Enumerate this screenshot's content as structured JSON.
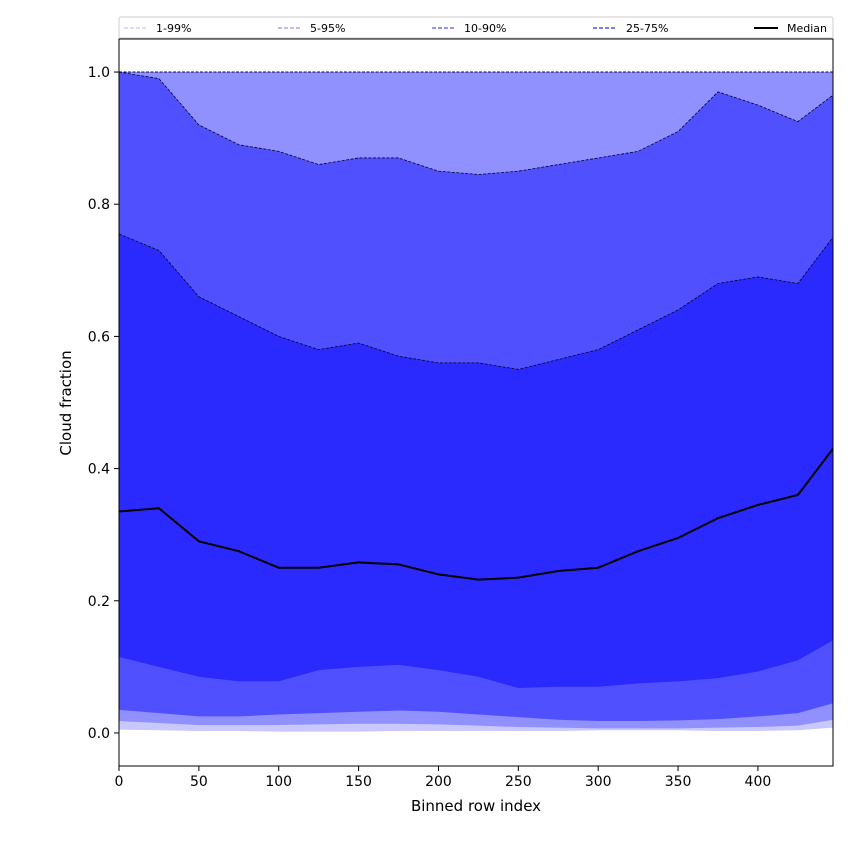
{
  "chart_data": {
    "type": "area",
    "xlabel": "Binned row index",
    "ylabel": "Cloud fraction",
    "xlim": [
      0,
      447
    ],
    "ylim": [
      -0.05,
      1.05
    ],
    "xticks": [
      0,
      50,
      100,
      150,
      200,
      250,
      300,
      350,
      400
    ],
    "yticks": [
      0.0,
      0.2,
      0.4,
      0.6,
      0.8,
      1.0
    ],
    "ytick_labels": [
      "0.0",
      "0.2",
      "0.4",
      "0.6",
      "0.8",
      "1.0"
    ],
    "legend": {
      "placement": "top",
      "entries": [
        {
          "label": "1-99%",
          "color": "#c8c8ff",
          "style": "dashed"
        },
        {
          "label": "5-95%",
          "color": "#9090ff",
          "style": "dashed"
        },
        {
          "label": "10-90%",
          "color": "#5050ff",
          "style": "dashed"
        },
        {
          "label": "25-75%",
          "color": "#2a2aff",
          "style": "dashed"
        },
        {
          "label": "Median",
          "color": "#000000",
          "style": "solid"
        }
      ]
    },
    "x": [
      0,
      25,
      50,
      75,
      100,
      125,
      150,
      175,
      200,
      225,
      250,
      275,
      300,
      325,
      350,
      375,
      400,
      425,
      447
    ],
    "bands": [
      {
        "name": "1-99%",
        "color": "#c8c8ff",
        "lower": [
          0.005,
          0.004,
          0.003,
          0.003,
          0.002,
          0.002,
          0.002,
          0.003,
          0.003,
          0.003,
          0.003,
          0.003,
          0.004,
          0.004,
          0.004,
          0.003,
          0.003,
          0.004,
          0.008
        ],
        "upper": [
          1.0,
          1.0,
          1.0,
          1.0,
          1.0,
          1.0,
          1.0,
          1.0,
          1.0,
          1.0,
          1.0,
          1.0,
          1.0,
          1.0,
          1.0,
          1.0,
          1.0,
          1.0,
          1.0
        ]
      },
      {
        "name": "5-95%",
        "color": "#9090ff",
        "lower": [
          0.018,
          0.015,
          0.012,
          0.012,
          0.012,
          0.013,
          0.014,
          0.014,
          0.013,
          0.011,
          0.009,
          0.008,
          0.007,
          0.007,
          0.007,
          0.008,
          0.009,
          0.011,
          0.02
        ],
        "upper": [
          1.0,
          1.0,
          1.0,
          1.0,
          1.0,
          1.0,
          1.0,
          1.0,
          1.0,
          1.0,
          1.0,
          1.0,
          1.0,
          1.0,
          1.0,
          1.0,
          1.0,
          1.0,
          1.0
        ]
      },
      {
        "name": "10-90%",
        "color": "#5050ff",
        "lower": [
          0.035,
          0.03,
          0.025,
          0.025,
          0.028,
          0.03,
          0.032,
          0.034,
          0.032,
          0.028,
          0.024,
          0.02,
          0.018,
          0.018,
          0.019,
          0.021,
          0.025,
          0.03,
          0.045
        ],
        "upper": [
          1.0,
          0.99,
          0.92,
          0.89,
          0.88,
          0.86,
          0.87,
          0.87,
          0.85,
          0.845,
          0.85,
          0.86,
          0.87,
          0.88,
          0.91,
          0.97,
          0.95,
          0.925,
          0.965
        ]
      },
      {
        "name": "25-75%",
        "color": "#2a2aff",
        "lower": [
          0.115,
          0.1,
          0.085,
          0.078,
          0.078,
          0.095,
          0.1,
          0.103,
          0.095,
          0.085,
          0.068,
          0.07,
          0.07,
          0.075,
          0.078,
          0.083,
          0.093,
          0.11,
          0.14
        ],
        "upper": [
          0.755,
          0.73,
          0.66,
          0.63,
          0.6,
          0.58,
          0.59,
          0.57,
          0.56,
          0.56,
          0.55,
          0.565,
          0.58,
          0.61,
          0.64,
          0.68,
          0.69,
          0.68,
          0.75
        ]
      }
    ],
    "series": [
      {
        "name": "Median",
        "color": "#000000",
        "values": [
          0.335,
          0.34,
          0.29,
          0.275,
          0.25,
          0.25,
          0.258,
          0.255,
          0.24,
          0.232,
          0.235,
          0.245,
          0.25,
          0.275,
          0.295,
          0.325,
          0.345,
          0.36,
          0.43
        ]
      }
    ]
  }
}
